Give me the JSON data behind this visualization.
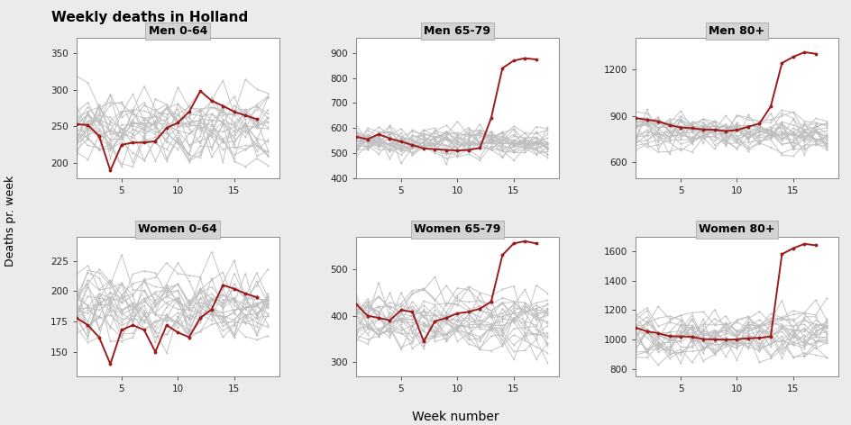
{
  "title": "Weekly deaths in Holland",
  "xlabel": "Week number",
  "ylabel": "Deaths pr. week",
  "subplots": [
    {
      "title": "Men 0-64",
      "row": 0,
      "col": 0,
      "ylim": [
        180,
        370
      ],
      "yticks": [
        200,
        250,
        300,
        350
      ],
      "red": [
        253,
        252,
        237,
        190,
        225,
        228,
        228,
        230,
        248,
        255,
        270,
        298,
        285,
        278,
        270,
        265,
        260
      ],
      "grey_mean": 248,
      "grey_std": 28,
      "grey_amp": 20
    },
    {
      "title": "Men 65-79",
      "row": 0,
      "col": 1,
      "ylim": [
        400,
        960
      ],
      "yticks": [
        400,
        500,
        600,
        700,
        800,
        900
      ],
      "red": [
        565,
        555,
        575,
        558,
        545,
        532,
        518,
        515,
        512,
        510,
        512,
        520,
        640,
        840,
        870,
        880,
        875
      ],
      "grey_mean": 540,
      "grey_std": 42,
      "grey_amp": 38
    },
    {
      "title": "Men 80+",
      "row": 0,
      "col": 2,
      "ylim": [
        500,
        1400
      ],
      "yticks": [
        600,
        900,
        1200
      ],
      "red": [
        885,
        875,
        865,
        840,
        825,
        820,
        812,
        810,
        802,
        808,
        830,
        850,
        960,
        1240,
        1280,
        1310,
        1300
      ],
      "grey_mean": 790,
      "grey_std": 75,
      "grey_amp": 75
    },
    {
      "title": "Women 0-64",
      "row": 1,
      "col": 0,
      "ylim": [
        130,
        245
      ],
      "yticks": [
        150,
        175,
        200,
        225
      ],
      "red": [
        178,
        172,
        162,
        140,
        168,
        172,
        168,
        150,
        172,
        166,
        162,
        178,
        185,
        205,
        202,
        198,
        195
      ],
      "grey_mean": 190,
      "grey_std": 17,
      "grey_amp": 12
    },
    {
      "title": "Women 65-79",
      "row": 1,
      "col": 1,
      "ylim": [
        270,
        570
      ],
      "yticks": [
        300,
        400,
        500
      ],
      "red": [
        425,
        400,
        395,
        390,
        412,
        408,
        345,
        388,
        395,
        405,
        408,
        415,
        430,
        530,
        555,
        560,
        555
      ],
      "grey_mean": 392,
      "grey_std": 35,
      "grey_amp": 32
    },
    {
      "title": "Women 80+",
      "row": 1,
      "col": 2,
      "ylim": [
        750,
        1700
      ],
      "yticks": [
        800,
        1000,
        1200,
        1400,
        1600
      ],
      "red": [
        1080,
        1055,
        1042,
        1022,
        1020,
        1018,
        1002,
        1000,
        998,
        1000,
        1008,
        1010,
        1020,
        1580,
        1620,
        1650,
        1640
      ],
      "grey_mean": 1035,
      "grey_std": 95,
      "grey_amp": 88
    }
  ],
  "red_color": "#9B1C1C",
  "grey_color": "#BEBEBE",
  "bg_color": "#EBEBEB",
  "plot_bg": "#FFFFFF",
  "title_bg": "#D3D3D3",
  "weeks_grey": 18,
  "n_grey_lines": 22,
  "seed": 7
}
